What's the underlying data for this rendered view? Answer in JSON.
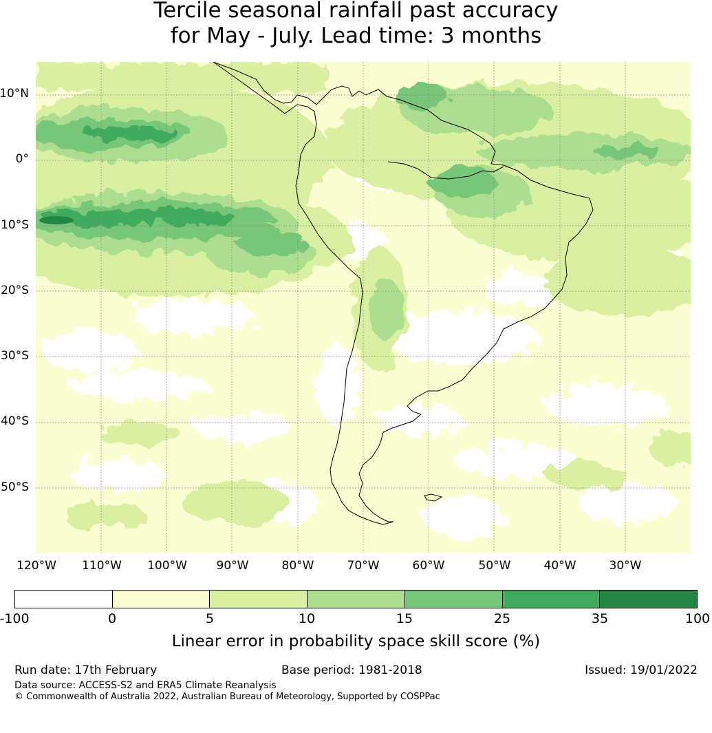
{
  "title_line1": "Tercile seasonal rainfall past accuracy",
  "title_line2": "for May - July. Lead time: 3 months",
  "map": {
    "lat_labels": [
      "10°N",
      "0°",
      "10°S",
      "20°S",
      "30°S",
      "40°S",
      "50°S"
    ],
    "lon_labels": [
      "120°W",
      "110°W",
      "100°W",
      "90°W",
      "80°W",
      "70°W",
      "60°W",
      "50°W",
      "40°W",
      "30°W"
    ],
    "extent": {
      "lon_min": -120,
      "lon_max": -20,
      "lat_min": -60,
      "lat_max": 15
    },
    "gridlines": true
  },
  "colorbar": {
    "ticks": [
      "-100",
      "0",
      "5",
      "10",
      "15",
      "25",
      "35",
      "100"
    ],
    "colors": [
      "#ffffff",
      "#fbfed0",
      "#d9f0a3",
      "#addd8e",
      "#78c679",
      "#41ab5d",
      "#238443"
    ],
    "label": "Linear error in probability space skill score (%)"
  },
  "footer": {
    "run_date": "Run date: 17th February",
    "base_period": "Base period: 1981-2018",
    "issued": "Issued: 19/01/2022",
    "data_source": "Data source: ACCESS-S2 and ERA5 Climate Reanalysis",
    "copyright": "© Commonwealth of Australia 2022, Australian Bureau of Meteorology, Supported by COSPPac"
  }
}
